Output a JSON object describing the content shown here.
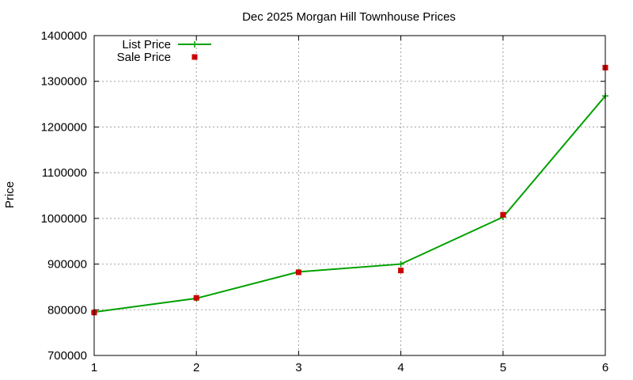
{
  "chart_data": {
    "type": "line",
    "title": "Dec 2025 Morgan Hill Townhouse Prices",
    "xlabel": "",
    "ylabel": "Price",
    "xlim": [
      1,
      6
    ],
    "ylim": [
      700000,
      1400000
    ],
    "x_ticks": [
      1,
      2,
      3,
      4,
      5,
      6
    ],
    "y_ticks": [
      700000,
      800000,
      900000,
      1000000,
      1100000,
      1200000,
      1300000,
      1400000
    ],
    "grid": true,
    "legend_position": "top-left",
    "series": [
      {
        "name": "List Price",
        "style": "line-with-plus-markers",
        "color": "#00a000",
        "x": [
          1,
          2,
          3,
          4,
          5,
          6
        ],
        "values": [
          795000,
          825000,
          883000,
          900000,
          1003000,
          1268000
        ]
      },
      {
        "name": "Sale Price",
        "style": "square-markers",
        "color": "#cc0000",
        "x": [
          1,
          2,
          3,
          4,
          5,
          6
        ],
        "values": [
          794000,
          826000,
          882000,
          886000,
          1008000,
          1330000
        ]
      }
    ]
  }
}
